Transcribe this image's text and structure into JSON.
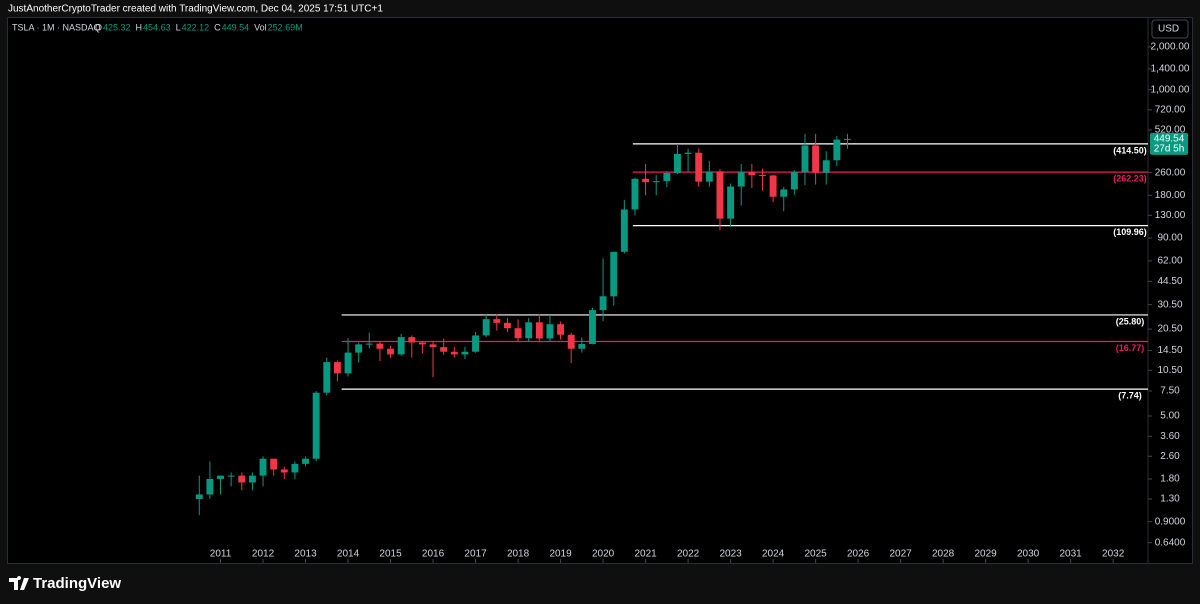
{
  "header": {
    "attribution": "JustAnotherCryptoTrader created with TradingView.com, Dec 04, 2025 17:51 UTC+1",
    "symbol": "TSLA · 1M · NASDAQ",
    "ohlc": [
      {
        "label": "O",
        "value": "425.32"
      },
      {
        "label": "H",
        "value": "454.63"
      },
      {
        "label": "L",
        "value": "422.12"
      },
      {
        "label": "C",
        "value": "449.54"
      },
      {
        "label": "Vol",
        "value": "252.69M"
      }
    ],
    "currency": "USD",
    "countdown": "27d 5h",
    "brand": "TradingView"
  },
  "chart_data": {
    "type": "candlestick",
    "log_scale": true,
    "grid": false,
    "up_color": "#089981",
    "down_color": "#f23645",
    "x": [
      2010.5,
      2010.75,
      2011,
      2011.25,
      2011.5,
      2011.75,
      2012,
      2012.25,
      2012.5,
      2012.75,
      2013,
      2013.25,
      2013.5,
      2013.75,
      2014,
      2014.25,
      2014.5,
      2014.75,
      2015,
      2015.25,
      2015.5,
      2015.75,
      2016,
      2016.25,
      2016.5,
      2016.75,
      2017,
      2017.25,
      2017.5,
      2017.75,
      2018,
      2018.25,
      2018.5,
      2018.75,
      2019,
      2019.25,
      2019.5,
      2019.75,
      2020,
      2020.25,
      2020.5,
      2020.75,
      2021,
      2021.25,
      2021.5,
      2021.75,
      2022,
      2022.25,
      2022.5,
      2022.75,
      2023,
      2023.25,
      2023.5,
      2023.75,
      2024,
      2024.25,
      2024.5,
      2024.75,
      2025,
      2025.25,
      2025.5,
      2025.75
    ],
    "open": [
      1.3,
      1.4,
      1.8,
      1.9,
      1.9,
      1.7,
      1.9,
      2.5,
      2.1,
      2.0,
      2.3,
      2.5,
      7.3,
      12.0,
      10.0,
      14.0,
      16.0,
      16.2,
      14.9,
      13.6,
      18.0,
      16.5,
      16.0,
      15.3,
      14.2,
      13.6,
      14.2,
      18.5,
      24.1,
      22.7,
      20.8,
      17.7,
      22.9,
      17.6,
      22.2,
      18.7,
      14.9,
      16.1,
      27.9,
      34.9,
      71.9,
      143.0,
      235.2,
      222.6,
      226.6,
      258.5,
      352.3,
      359.2,
      224.5,
      265.3,
      123.2,
      207.5,
      261.8,
      250.2,
      248.5,
      175.8,
      197.9,
      261.6,
      403.8,
      259.2,
      317.7,
      444.7
    ],
    "high": [
      1.9,
      2.4,
      1.9,
      2.0,
      2.0,
      2.0,
      2.6,
      2.5,
      2.2,
      2.4,
      2.6,
      7.5,
      12.9,
      12.3,
      17.7,
      16.5,
      19.4,
      16.9,
      15.6,
      19.0,
      18.5,
      16.9,
      16.6,
      17.6,
      15.4,
      15.4,
      19.6,
      25.9,
      26.0,
      24.6,
      24.0,
      24.5,
      26.0,
      25.8,
      23.2,
      19.3,
      17.9,
      29.0,
      64.6,
      72.0,
      166.7,
      239.6,
      300.0,
      250.0,
      266.0,
      414.5,
      384.0,
      384.3,
      314.7,
      276.0,
      217.6,
      299.3,
      299.3,
      278.0,
      251.3,
      205.6,
      271.0,
      488.5,
      488.5,
      367.7,
      470.8,
      488.5
    ],
    "low": [
      1.0,
      1.3,
      1.4,
      1.6,
      1.5,
      1.5,
      1.6,
      1.9,
      1.8,
      1.8,
      2.2,
      2.4,
      7.0,
      8.8,
      9.5,
      11.9,
      15.0,
      12.2,
      12.8,
      13.3,
      12.9,
      13.8,
      9.4,
      13.5,
      12.9,
      12.6,
      14.0,
      18.0,
      20.0,
      19.5,
      16.7,
      16.8,
      16.5,
      16.9,
      17.3,
      11.8,
      14.0,
      16.0,
      23.4,
      30.0,
      70.0,
      130.0,
      179.8,
      180.0,
      206.0,
      254.0,
      264.0,
      206.9,
      206.9,
      101.8,
      108.2,
      152.4,
      202.5,
      194.1,
      160.5,
      138.8,
      182.0,
      212.1,
      214.3,
      214.2,
      288.8,
      382.8
    ],
    "close": [
      1.4,
      1.8,
      1.9,
      1.9,
      1.7,
      1.9,
      2.5,
      2.1,
      2.0,
      2.3,
      2.5,
      7.3,
      12.0,
      10.0,
      14.0,
      16.0,
      16.2,
      14.9,
      13.6,
      18.0,
      16.5,
      16.0,
      15.3,
      14.2,
      13.6,
      14.2,
      18.5,
      24.1,
      22.7,
      20.8,
      17.7,
      22.9,
      17.6,
      22.2,
      18.7,
      14.9,
      16.1,
      27.9,
      34.9,
      71.9,
      143.0,
      235.2,
      222.6,
      226.6,
      258.5,
      352.3,
      359.2,
      224.5,
      265.3,
      123.2,
      207.5,
      261.8,
      250.2,
      248.5,
      175.8,
      197.9,
      261.6,
      403.8,
      259.2,
      317.7,
      444.7,
      449.54
    ],
    "levels": [
      {
        "value": 414.5,
        "label": "(414.50)",
        "color": "#ffffff",
        "start": 2020.7
      },
      {
        "value": 262.23,
        "label": "(262.23)",
        "color": "#e91e63",
        "start": 2020.7
      },
      {
        "value": 109.96,
        "label": "(109.96)",
        "color": "#ffffff",
        "start": 2020.7
      },
      {
        "value": 25.8,
        "label": "(25.80)",
        "color": "#ffffff",
        "start": 2013.85
      },
      {
        "value": 16.77,
        "label": "(16.77)",
        "color": "#e91e63",
        "start": 2013.85
      },
      {
        "value": 7.74,
        "label": "(7.74)",
        "color": "#ffffff",
        "start": 2013.85
      }
    ],
    "xlim": [
      2006,
      2032.82
    ],
    "xticks": [
      2011,
      2012,
      2013,
      2014,
      2015,
      2016,
      2017,
      2018,
      2019,
      2020,
      2021,
      2022,
      2023,
      2024,
      2025,
      2026,
      2027,
      2028,
      2029,
      2030,
      2031,
      2032
    ],
    "ylim": [
      0.46,
      3200
    ],
    "yticks": [
      {
        "value": 2000,
        "label": "2,000.00"
      },
      {
        "value": 1400,
        "label": "1,400.00"
      },
      {
        "value": 1000,
        "label": "1,000.00"
      },
      {
        "value": 720,
        "label": "720.00"
      },
      {
        "value": 520,
        "label": "520.00"
      },
      {
        "value": 260,
        "label": "260.00"
      },
      {
        "value": 180,
        "label": "180.00"
      },
      {
        "value": 130,
        "label": "130.00"
      },
      {
        "value": 90,
        "label": "90.00"
      },
      {
        "value": 62,
        "label": "62.00"
      },
      {
        "value": 44.5,
        "label": "44.50"
      },
      {
        "value": 30.5,
        "label": "30.50"
      },
      {
        "value": 20.5,
        "label": "20.50"
      },
      {
        "value": 14.5,
        "label": "14.50"
      },
      {
        "value": 10.5,
        "label": "10.50"
      },
      {
        "value": 7.5,
        "label": "7.50"
      },
      {
        "value": 5,
        "label": "5.00"
      },
      {
        "value": 3.6,
        "label": "3.60"
      },
      {
        "value": 2.6,
        "label": "2.60"
      },
      {
        "value": 1.8,
        "label": "1.80"
      },
      {
        "value": 1.3,
        "label": "1.30"
      },
      {
        "value": 0.9,
        "label": "0.9000"
      },
      {
        "value": 0.64,
        "label": "0.6400"
      }
    ]
  }
}
